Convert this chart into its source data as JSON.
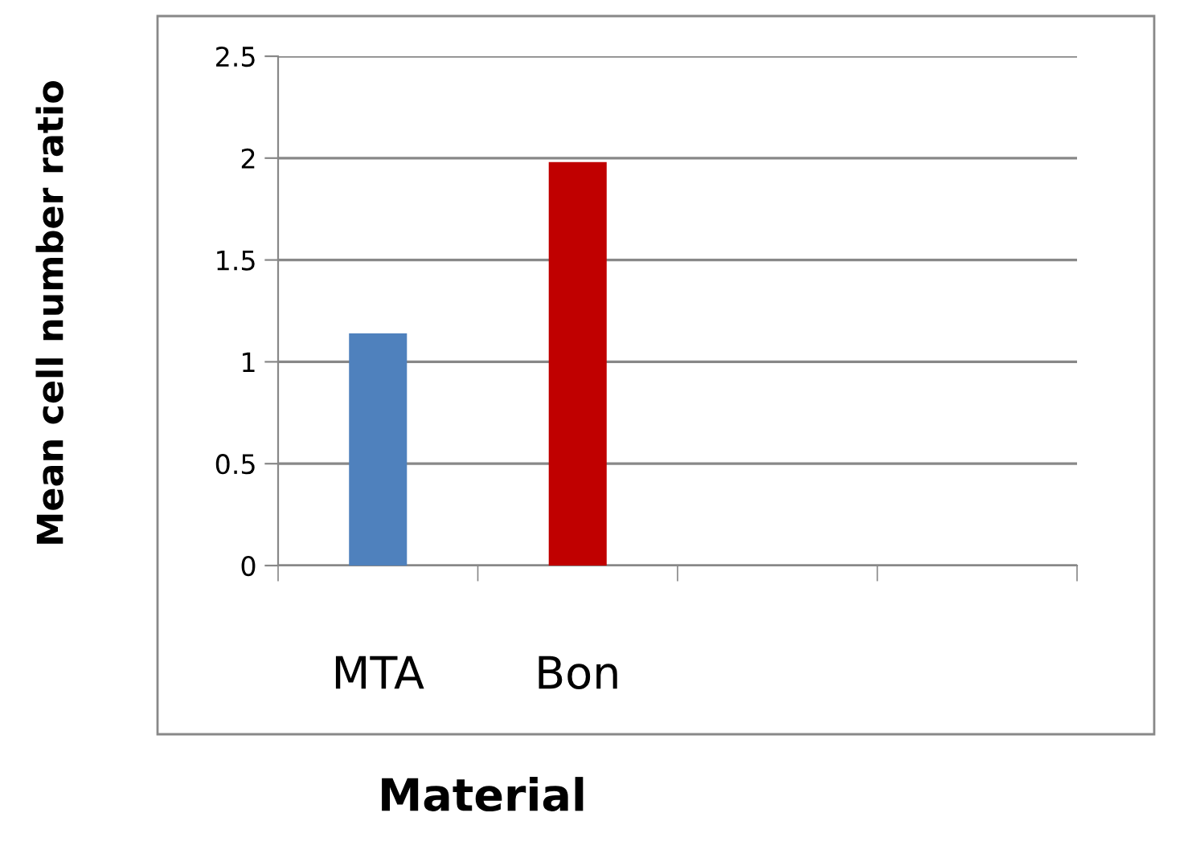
{
  "chart_data": {
    "type": "bar",
    "xlabel": "Material",
    "ylabel": "Mean cell number ratio",
    "categories": [
      "MTA",
      "Bon",
      null,
      null
    ],
    "values": [
      1.14,
      1.98,
      null,
      null
    ],
    "colors": [
      "#4f81bd",
      "#c00000",
      "#4f81bd",
      "#4f81bd"
    ],
    "ylim": [
      0,
      2.5
    ],
    "yticks": [
      0,
      0.5,
      1,
      1.5,
      2,
      2.5
    ],
    "grid": "y",
    "legend": false
  }
}
